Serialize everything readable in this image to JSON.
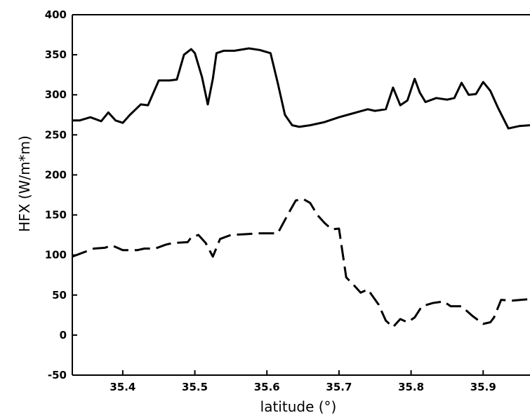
{
  "chart_data": {
    "type": "line",
    "title": "",
    "xlabel": "latitude (°)",
    "ylabel": "HFX (W/m*m)",
    "xlim": [
      35.33,
      35.965
    ],
    "ylim": [
      -50,
      400
    ],
    "grid": false,
    "x_ticks": [
      35.4,
      35.5,
      35.6,
      35.7,
      35.8,
      35.9
    ],
    "x_tick_labels": [
      "35.4",
      "35.5",
      "35.6",
      "35.7",
      "35.8",
      "35.9"
    ],
    "y_ticks": [
      -50,
      0,
      50,
      100,
      150,
      200,
      250,
      300,
      350,
      400
    ],
    "y_tick_labels": [
      "-50",
      "0",
      "50",
      "100",
      "150",
      "200",
      "250",
      "300",
      "350",
      "400"
    ],
    "series": [
      {
        "style": "solid",
        "color": "#000000",
        "x": [
          35.33,
          35.34,
          35.355,
          35.37,
          35.38,
          35.39,
          35.4,
          35.41,
          35.425,
          35.435,
          35.45,
          35.465,
          35.475,
          35.485,
          35.495,
          35.5,
          35.51,
          35.518,
          35.525,
          35.53,
          35.54,
          35.555,
          35.575,
          35.59,
          35.605,
          35.615,
          35.625,
          35.635,
          35.645,
          35.66,
          35.68,
          35.7,
          35.72,
          35.74,
          35.75,
          35.765,
          35.775,
          35.785,
          35.795,
          35.805,
          35.812,
          35.82,
          35.835,
          35.85,
          35.86,
          35.87,
          35.88,
          35.89,
          35.9,
          35.91,
          35.92,
          35.935,
          35.95,
          35.965
        ],
        "y": [
          268,
          268,
          272,
          267,
          278,
          268,
          265,
          275,
          288,
          287,
          318,
          318,
          319,
          350,
          357,
          352,
          322,
          288,
          320,
          352,
          355,
          355,
          358,
          356,
          352,
          315,
          275,
          262,
          260,
          262,
          266,
          272,
          277,
          282,
          280,
          282,
          309,
          287,
          293,
          320,
          303,
          291,
          296,
          294,
          296,
          315,
          300,
          301,
          316,
          305,
          285,
          258,
          261,
          262
        ]
      },
      {
        "style": "dashed",
        "color": "#000000",
        "x": [
          35.33,
          35.345,
          35.36,
          35.375,
          35.385,
          35.4,
          35.42,
          35.43,
          35.445,
          35.46,
          35.47,
          35.49,
          35.495,
          35.505,
          35.515,
          35.525,
          35.535,
          35.55,
          35.57,
          35.59,
          35.615,
          35.63,
          35.64,
          35.65,
          35.66,
          35.67,
          35.68,
          35.69,
          35.7,
          35.71,
          35.72,
          35.73,
          35.74,
          35.755,
          35.765,
          35.775,
          35.785,
          35.795,
          35.805,
          35.815,
          35.83,
          35.845,
          35.855,
          35.87,
          35.885,
          35.9,
          35.91,
          35.915,
          35.925,
          35.94,
          35.965
        ],
        "y": [
          98,
          103,
          108,
          109,
          112,
          106,
          106,
          108,
          108,
          113,
          115,
          116,
          122,
          125,
          115,
          98,
          120,
          125,
          126,
          127,
          127,
          152,
          168,
          170,
          165,
          150,
          140,
          132,
          133,
          72,
          63,
          53,
          57,
          38,
          18,
          10,
          20,
          16,
          22,
          36,
          40,
          42,
          36,
          36,
          24,
          14,
          16,
          22,
          44,
          43,
          45
        ]
      }
    ]
  }
}
